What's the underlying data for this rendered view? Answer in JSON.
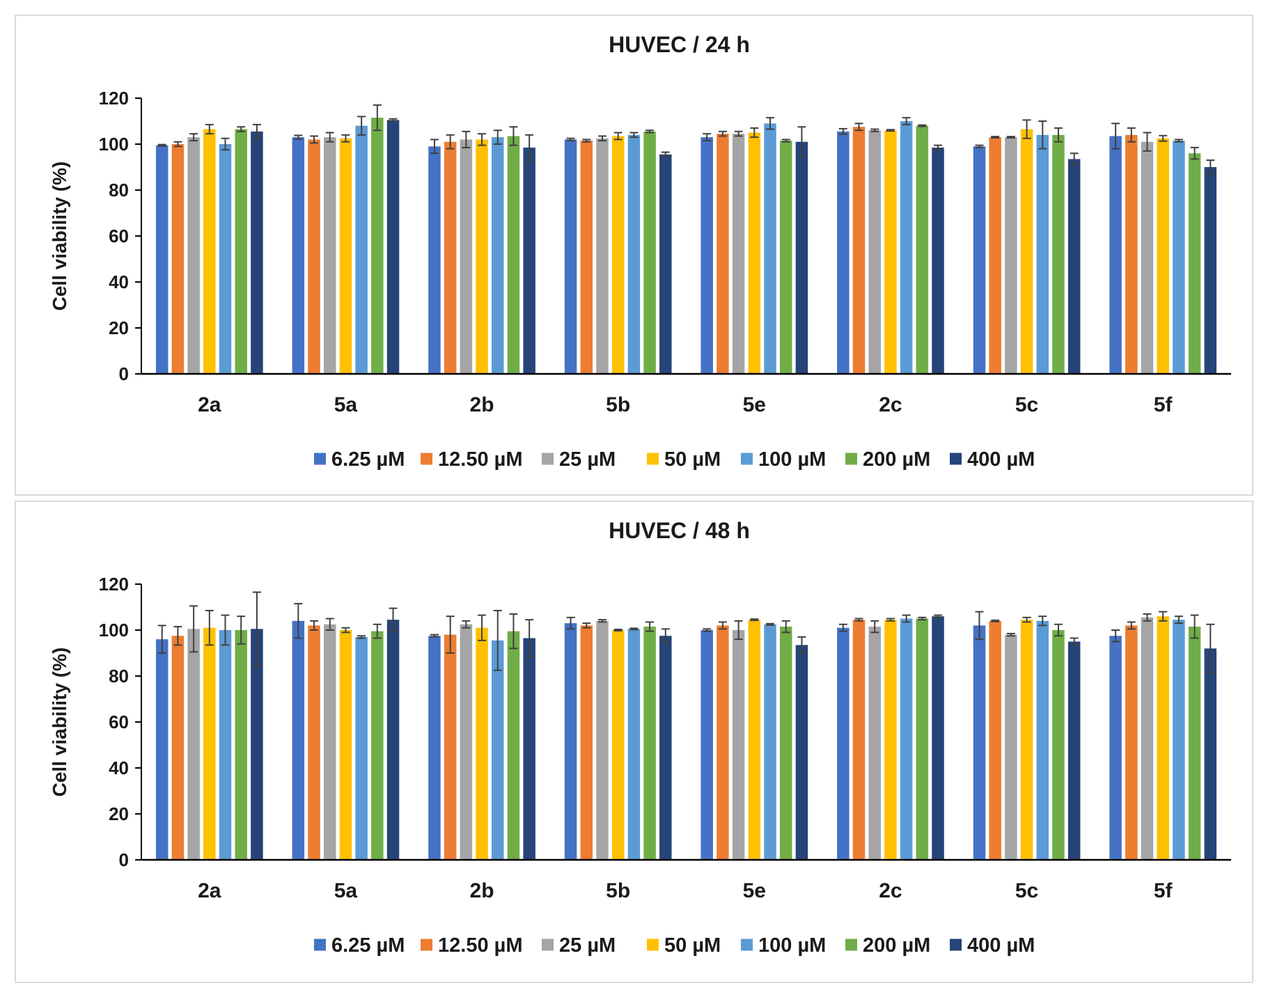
{
  "chart_data": [
    {
      "type": "bar",
      "title": "HUVEC / 24 h",
      "xlabel": "",
      "ylabel": "Cell viability (%)",
      "ylim": [
        0,
        120
      ],
      "yticks": [
        0,
        20,
        40,
        60,
        80,
        100,
        120
      ],
      "grid": false,
      "legend_position": "bottom",
      "categories": [
        "2a",
        "5a",
        "2b",
        "5b",
        "5e",
        "2c",
        "5c",
        "5f"
      ],
      "series": [
        {
          "name": "6.25 µM",
          "color": "#4472C4",
          "values": [
            99.5,
            103,
            99,
            102,
            103,
            105.5,
            99,
            103.5
          ],
          "errors": [
            0.3,
            0.8,
            3,
            0.5,
            1.5,
            1.2,
            0.5,
            5.5
          ]
        },
        {
          "name": "12.50 µM",
          "color": "#ED7D31",
          "values": [
            100,
            102,
            101,
            101.5,
            104.5,
            107.5,
            103,
            104
          ],
          "errors": [
            1,
            1.5,
            3,
            0.5,
            1,
            1.5,
            0.3,
            3
          ]
        },
        {
          "name": "25 µM",
          "color": "#A5A5A5",
          "values": [
            103,
            103,
            102,
            102.5,
            104.5,
            106,
            103,
            101
          ],
          "errors": [
            1.5,
            2,
            3.5,
            1,
            1,
            0.5,
            0.3,
            4
          ]
        },
        {
          "name": "50 µM",
          "color": "#FFC000",
          "values": [
            106.5,
            102.5,
            102,
            103.5,
            105,
            106,
            106.5,
            102.5
          ],
          "errors": [
            2,
            1.5,
            2.5,
            1.5,
            2,
            0.3,
            4,
            1.2
          ]
        },
        {
          "name": "100 µM",
          "color": "#5B9BD5",
          "values": [
            100,
            108,
            103,
            104,
            109,
            110,
            104,
            101.5
          ],
          "errors": [
            2.5,
            4,
            3,
            1,
            2.5,
            1.5,
            6,
            0.5
          ]
        },
        {
          "name": "200 µM",
          "color": "#70AD47",
          "values": [
            106.5,
            111.5,
            103.5,
            105.5,
            101.5,
            108,
            104,
            96
          ],
          "errors": [
            1,
            5.5,
            4,
            0.5,
            0.5,
            0.3,
            3,
            2.5
          ]
        },
        {
          "name": "400 µM",
          "color": "#264478",
          "values": [
            105.5,
            110.5,
            98.5,
            95.5,
            101,
            98.5,
            93.5,
            90
          ],
          "errors": [
            3,
            0.5,
            5.5,
            1,
            6.5,
            1,
            2.5,
            3
          ]
        }
      ]
    },
    {
      "type": "bar",
      "title": "HUVEC / 48 h",
      "xlabel": "",
      "ylabel": "Cell viability (%)",
      "ylim": [
        0,
        120
      ],
      "yticks": [
        0,
        20,
        40,
        60,
        80,
        100,
        120
      ],
      "grid": false,
      "legend_position": "bottom",
      "categories": [
        "2a",
        "5a",
        "2b",
        "5b",
        "5e",
        "2c",
        "5c",
        "5f"
      ],
      "series": [
        {
          "name": "6.25 µM",
          "color": "#4472C4",
          "values": [
            96,
            104,
            97.5,
            103,
            100,
            101,
            102,
            97.5
          ],
          "errors": [
            6,
            7.5,
            0.5,
            2.5,
            0.5,
            1.5,
            6,
            2.5
          ]
        },
        {
          "name": "12.50 µM",
          "color": "#ED7D31",
          "values": [
            97.5,
            102,
            98,
            102,
            102,
            104.5,
            104,
            102
          ],
          "errors": [
            4,
            2,
            8,
            1,
            1.5,
            0.5,
            0.3,
            1.5
          ]
        },
        {
          "name": "25 µM",
          "color": "#A5A5A5",
          "values": [
            100.5,
            102.5,
            102.5,
            104,
            100,
            101.5,
            98,
            105.5
          ],
          "errors": [
            10,
            2.5,
            1.5,
            0.5,
            4,
            2.5,
            0.5,
            1.5
          ]
        },
        {
          "name": "50 µM",
          "color": "#FFC000",
          "values": [
            101,
            100,
            101,
            100,
            104.5,
            104.5,
            104.5,
            106
          ],
          "errors": [
            7.5,
            1,
            5.5,
            0.3,
            0.3,
            0.5,
            1,
            2
          ]
        },
        {
          "name": "100 µM",
          "color": "#5B9BD5",
          "values": [
            100,
            97,
            95.5,
            100.5,
            102.5,
            105,
            104,
            104.5
          ],
          "errors": [
            6.5,
            0.5,
            13,
            0.3,
            0.3,
            1.5,
            2,
            1.5
          ]
        },
        {
          "name": "200 µM",
          "color": "#70AD47",
          "values": [
            100,
            99.5,
            99.5,
            101.5,
            101.5,
            105,
            100,
            101.5
          ],
          "errors": [
            6,
            3,
            7.5,
            2,
            2.5,
            0.5,
            2.5,
            5
          ]
        },
        {
          "name": "400 µM",
          "color": "#264478",
          "values": [
            100.5,
            104.5,
            96.5,
            97.5,
            93.5,
            106,
            95,
            92
          ],
          "errors": [
            16,
            5,
            8,
            3,
            3.5,
            0.5,
            1.5,
            10.5
          ]
        }
      ]
    }
  ]
}
